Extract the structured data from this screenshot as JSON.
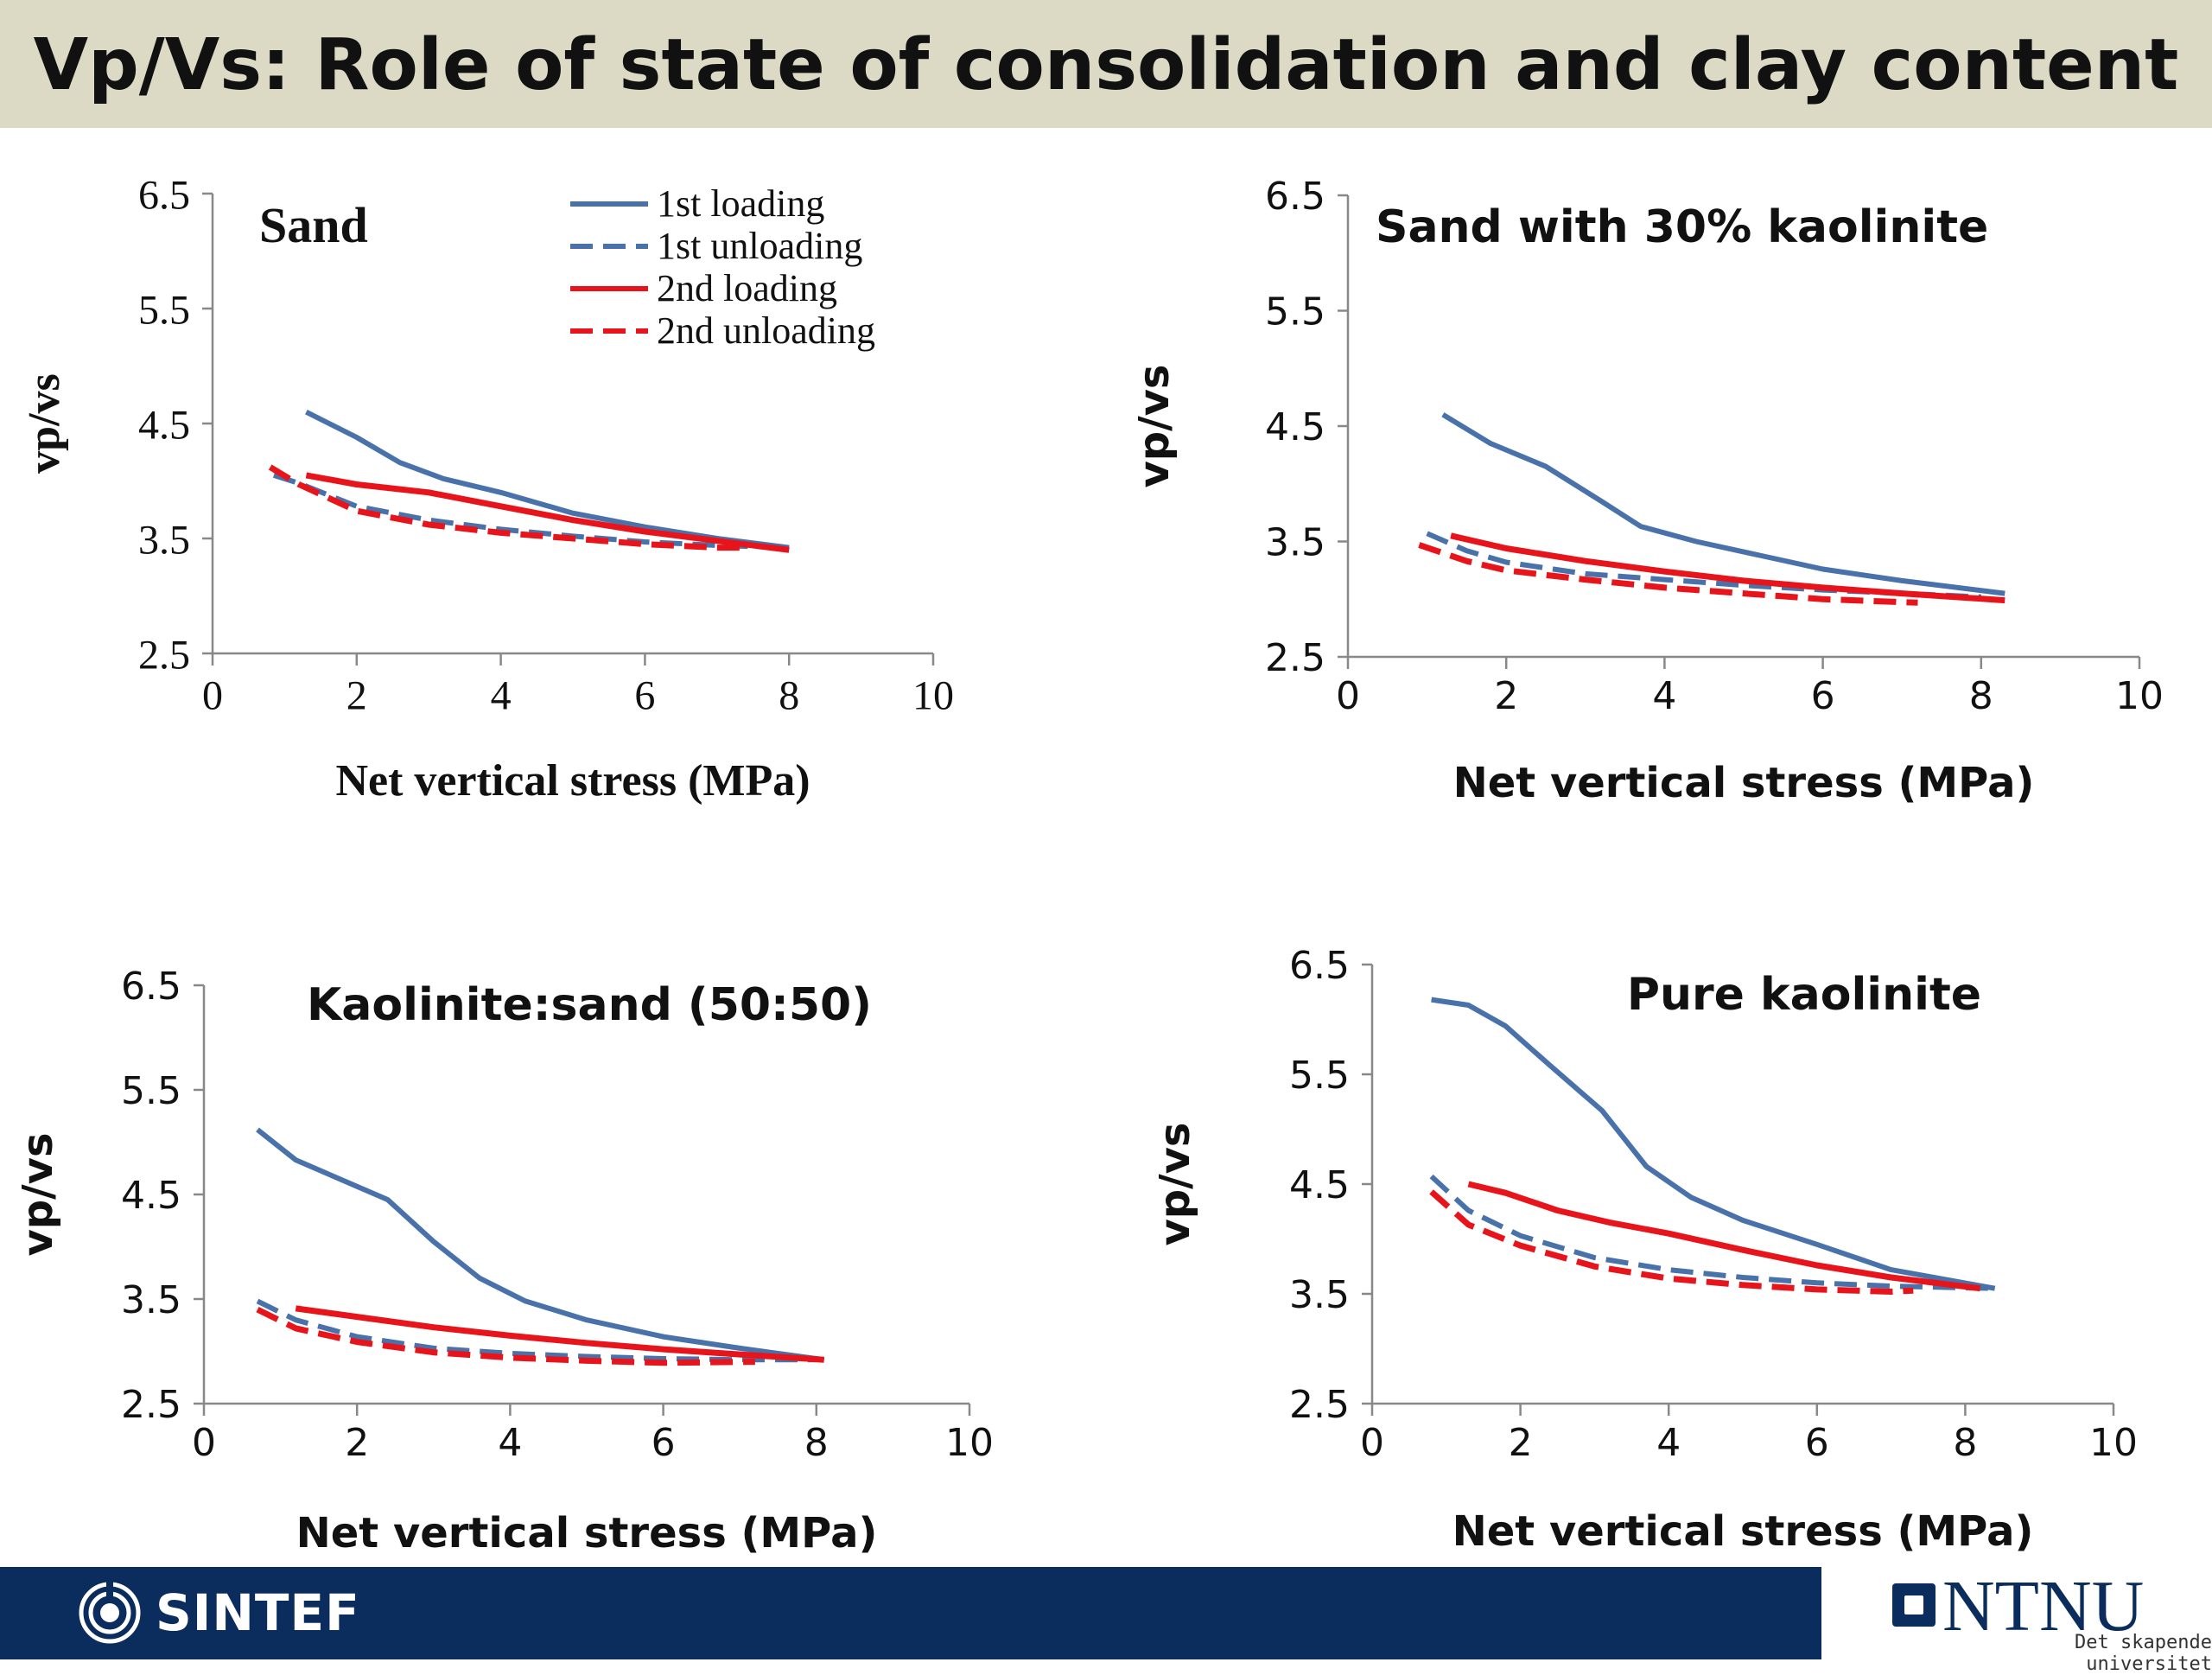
{
  "header": {
    "title": "Vp/Vs: Role of state of consolidation and clay content"
  },
  "legend": {
    "entries": [
      {
        "label": "1st loading",
        "color": "#4a72aa",
        "dash": false
      },
      {
        "label": "1st unloading",
        "color": "#4a72aa",
        "dash": true
      },
      {
        "label": "2nd loading",
        "color": "#e8141b",
        "dash": false
      },
      {
        "label": "2nd unloading",
        "color": "#e8141b",
        "dash": true
      }
    ]
  },
  "footer": {
    "left_logo": "SINTEF",
    "right_logo": "NTNU",
    "right_tagline": "Det skapende universitet"
  },
  "chart_data": [
    {
      "type": "line",
      "title": "Sand",
      "xlabel": "Net vertical stress (MPa)",
      "ylabel": "vp/vs",
      "xlim": [
        0,
        10
      ],
      "ylim": [
        2.5,
        6.5
      ],
      "xticks": [
        "0",
        "2",
        "4",
        "6",
        "8",
        "10"
      ],
      "yticks": [
        "2.5",
        "3.5",
        "4.5",
        "5.5",
        "6.5"
      ],
      "series": [
        {
          "name": "1st loading",
          "x": [
            1.3,
            2.0,
            2.6,
            3.2,
            4.0,
            5.0,
            6.0,
            7.0,
            8.0
          ],
          "y": [
            4.6,
            4.38,
            4.16,
            4.02,
            3.9,
            3.72,
            3.6,
            3.5,
            3.42
          ]
        },
        {
          "name": "1st unloading",
          "x": [
            0.85,
            1.2,
            2.0,
            3.0,
            4.0,
            5.0,
            6.0,
            7.0,
            8.0
          ],
          "y": [
            4.05,
            3.98,
            3.78,
            3.66,
            3.58,
            3.52,
            3.47,
            3.44,
            3.42
          ]
        },
        {
          "name": "2nd loading",
          "x": [
            1.3,
            2.0,
            3.0,
            4.0,
            5.0,
            6.0,
            7.0,
            8.0
          ],
          "y": [
            4.05,
            3.97,
            3.9,
            3.78,
            3.66,
            3.56,
            3.48,
            3.4
          ]
        },
        {
          "name": "2nd unloading",
          "x": [
            0.8,
            1.2,
            2.0,
            3.0,
            4.0,
            5.0,
            6.0,
            7.0,
            7.4
          ],
          "y": [
            4.12,
            3.97,
            3.74,
            3.62,
            3.55,
            3.5,
            3.45,
            3.42,
            3.42
          ]
        }
      ]
    },
    {
      "type": "line",
      "title": "Sand with 30% kaolinite",
      "xlabel": "Net vertical stress (MPa)",
      "ylabel": "vp/vs",
      "xlim": [
        0,
        10
      ],
      "ylim": [
        2.5,
        6.5
      ],
      "xticks": [
        "0",
        "2",
        "4",
        "6",
        "8",
        "10"
      ],
      "yticks": [
        "2.5",
        "3.5",
        "4.5",
        "5.5",
        "6.5"
      ],
      "series": [
        {
          "name": "1st loading",
          "x": [
            1.2,
            1.8,
            2.5,
            3.2,
            3.7,
            4.4,
            5.2,
            6.0,
            7.0,
            8.3
          ],
          "y": [
            4.6,
            4.35,
            4.15,
            3.85,
            3.63,
            3.5,
            3.38,
            3.26,
            3.16,
            3.05
          ]
        },
        {
          "name": "1st unloading",
          "x": [
            1.0,
            1.5,
            2.0,
            3.0,
            4.0,
            5.0,
            6.0,
            7.0,
            8.0
          ],
          "y": [
            3.57,
            3.42,
            3.32,
            3.22,
            3.17,
            3.12,
            3.08,
            3.05,
            3.02
          ]
        },
        {
          "name": "2nd loading",
          "x": [
            1.3,
            2.0,
            3.0,
            4.0,
            5.0,
            6.0,
            7.0,
            8.3
          ],
          "y": [
            3.55,
            3.44,
            3.33,
            3.24,
            3.16,
            3.1,
            3.05,
            2.99
          ]
        },
        {
          "name": "2nd unloading",
          "x": [
            0.9,
            1.5,
            2.0,
            3.0,
            4.0,
            5.0,
            6.0,
            7.2
          ],
          "y": [
            3.47,
            3.33,
            3.25,
            3.17,
            3.1,
            3.05,
            3.0,
            2.97
          ]
        }
      ]
    },
    {
      "type": "line",
      "title": "Kaolinite:sand (50:50)",
      "xlabel": "Net vertical stress (MPa)",
      "ylabel": "vp/vs",
      "xlim": [
        0,
        10
      ],
      "ylim": [
        2.5,
        6.5
      ],
      "xticks": [
        "0",
        "2",
        "4",
        "6",
        "8",
        "10"
      ],
      "yticks": [
        "2.5",
        "3.5",
        "4.5",
        "5.5",
        "6.5"
      ],
      "series": [
        {
          "name": "1st loading",
          "x": [
            0.7,
            1.2,
            1.8,
            2.4,
            3.0,
            3.6,
            4.2,
            5.0,
            6.0,
            7.0,
            8.1
          ],
          "y": [
            5.12,
            4.83,
            4.64,
            4.45,
            4.05,
            3.7,
            3.48,
            3.3,
            3.14,
            3.03,
            2.92
          ]
        },
        {
          "name": "1st unloading",
          "x": [
            0.7,
            1.2,
            2.0,
            3.0,
            4.0,
            5.0,
            6.0,
            7.0,
            8.0
          ],
          "y": [
            3.48,
            3.3,
            3.14,
            3.03,
            2.98,
            2.95,
            2.93,
            2.92,
            2.92
          ]
        },
        {
          "name": "2nd loading",
          "x": [
            1.2,
            2.0,
            3.0,
            4.0,
            5.0,
            6.0,
            7.0,
            8.1
          ],
          "y": [
            3.41,
            3.33,
            3.23,
            3.15,
            3.08,
            3.02,
            2.97,
            2.92
          ]
        },
        {
          "name": "2nd unloading",
          "x": [
            0.7,
            1.2,
            2.0,
            3.0,
            4.0,
            5.0,
            6.0,
            7.2
          ],
          "y": [
            3.4,
            3.22,
            3.09,
            2.99,
            2.94,
            2.91,
            2.89,
            2.9
          ]
        }
      ]
    },
    {
      "type": "line",
      "title": "Pure kaolinite",
      "xlabel": "Net vertical stress (MPa)",
      "ylabel": "vp/vs",
      "xlim": [
        0,
        10
      ],
      "ylim": [
        2.5,
        6.5
      ],
      "xticks": [
        "0",
        "2",
        "4",
        "6",
        "8",
        "10"
      ],
      "yticks": [
        "2.5",
        "3.5",
        "4.5",
        "5.5",
        "6.5"
      ],
      "series": [
        {
          "name": "1st loading",
          "x": [
            0.8,
            1.3,
            1.8,
            2.4,
            3.1,
            3.7,
            4.3,
            5.0,
            6.0,
            7.0,
            8.4
          ],
          "y": [
            6.18,
            6.13,
            5.94,
            5.58,
            5.17,
            4.66,
            4.38,
            4.17,
            3.95,
            3.72,
            3.55
          ]
        },
        {
          "name": "1st unloading",
          "x": [
            0.8,
            1.3,
            2.0,
            3.0,
            4.0,
            5.0,
            6.0,
            7.0,
            8.4
          ],
          "y": [
            4.57,
            4.26,
            4.03,
            3.83,
            3.72,
            3.65,
            3.6,
            3.57,
            3.55
          ]
        },
        {
          "name": "2nd loading",
          "x": [
            1.3,
            1.8,
            2.5,
            3.2,
            4.0,
            5.0,
            6.0,
            7.0,
            8.2
          ],
          "y": [
            4.5,
            4.42,
            4.26,
            4.15,
            4.05,
            3.9,
            3.76,
            3.65,
            3.55
          ]
        },
        {
          "name": "2nd unloading",
          "x": [
            0.8,
            1.3,
            2.0,
            3.0,
            4.0,
            5.0,
            6.0,
            7.0,
            7.3
          ],
          "y": [
            4.43,
            4.13,
            3.94,
            3.75,
            3.64,
            3.58,
            3.54,
            3.52,
            3.53
          ]
        }
      ]
    }
  ]
}
